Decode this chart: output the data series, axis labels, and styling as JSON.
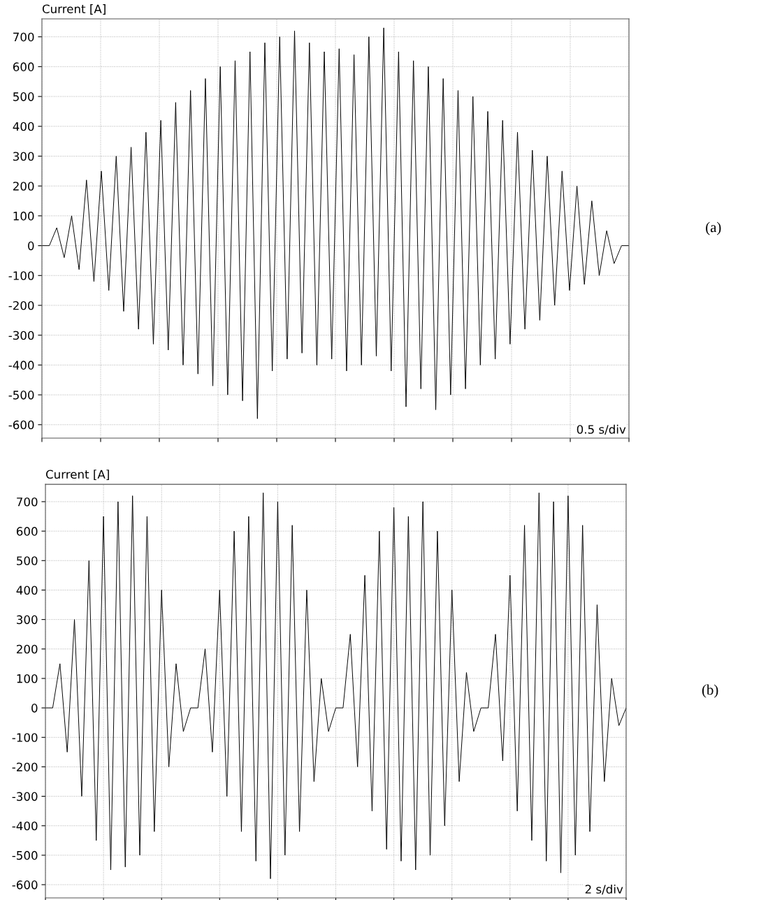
{
  "chart_data": [
    {
      "type": "line",
      "ylabel": "Current [A]",
      "annotations": [
        "0.5 s/div",
        "(a)"
      ],
      "ylim": [
        -645,
        760
      ],
      "yticks": [
        -600,
        -500,
        -400,
        -300,
        -200,
        -100,
        0,
        100,
        200,
        300,
        400,
        500,
        600,
        700
      ],
      "grid": true,
      "tick_labels": "y",
      "categories": [
        null,
        null,
        null,
        null,
        null,
        null,
        null,
        null,
        null,
        null,
        null,
        null,
        null,
        null,
        null,
        null,
        null,
        null,
        null,
        null,
        null,
        null,
        null,
        null,
        null,
        null,
        null,
        null,
        null,
        null,
        null,
        null,
        null,
        null,
        null,
        null,
        null,
        null,
        null,
        null,
        null,
        null,
        null,
        null,
        null,
        null,
        null,
        null,
        null,
        null,
        null,
        null,
        null,
        null,
        null,
        null,
        null,
        null,
        null,
        null,
        null,
        null,
        null,
        null,
        null,
        null,
        null,
        null,
        null,
        null,
        null,
        null,
        null,
        null,
        null,
        null,
        null,
        null,
        null,
        null
      ],
      "series": [
        {
          "color": "#000000",
          "values": [
            0,
            0,
            60,
            -40,
            100,
            -80,
            220,
            -120,
            250,
            -150,
            300,
            -220,
            330,
            -280,
            380,
            -330,
            420,
            -350,
            480,
            -400,
            520,
            -430,
            560,
            -470,
            600,
            -500,
            620,
            -520,
            650,
            -580,
            680,
            -420,
            700,
            -380,
            720,
            -360,
            680,
            -400,
            650,
            -380,
            660,
            -420,
            640,
            -400,
            700,
            -370,
            730,
            -420,
            650,
            -540,
            620,
            -480,
            600,
            -550,
            560,
            -500,
            520,
            -480,
            500,
            -400,
            450,
            -380,
            420,
            -330,
            380,
            -280,
            320,
            -250,
            300,
            -200,
            250,
            -150,
            200,
            -130,
            150,
            -100,
            50,
            -60,
            0,
            0
          ]
        }
      ]
    },
    {
      "type": "line",
      "ylabel": "Current [A]",
      "annotations": [
        "2 s/div",
        "(b)"
      ],
      "ylim": [
        -645,
        759
      ],
      "yticks": [
        -600,
        -500,
        -400,
        -300,
        -200,
        -100,
        0,
        100,
        200,
        300,
        400,
        500,
        600,
        700
      ],
      "grid": true,
      "tick_labels": "y",
      "categories": [
        null,
        null,
        null,
        null,
        null,
        null,
        null,
        null,
        null,
        null,
        null,
        null,
        null,
        null,
        null,
        null,
        null,
        null,
        null,
        null,
        null,
        null,
        null,
        null,
        null,
        null,
        null,
        null,
        null,
        null,
        null,
        null,
        null,
        null,
        null,
        null,
        null,
        null,
        null,
        null,
        null,
        null,
        null,
        null,
        null,
        null,
        null,
        null,
        null,
        null,
        null,
        null,
        null,
        null,
        null,
        null,
        null,
        null,
        null,
        null,
        null,
        null,
        null,
        null,
        null,
        null,
        null,
        null,
        null,
        null,
        null,
        null,
        null,
        null,
        null,
        null,
        null,
        null,
        null,
        null,
        null
      ],
      "series": [
        {
          "color": "#000000",
          "values": [
            0,
            0,
            150,
            -150,
            300,
            -300,
            500,
            -450,
            650,
            -550,
            700,
            -540,
            720,
            -500,
            650,
            -420,
            400,
            -200,
            150,
            -80,
            0,
            0,
            200,
            -150,
            400,
            -300,
            600,
            -420,
            650,
            -520,
            730,
            -580,
            700,
            -500,
            620,
            -420,
            400,
            -250,
            100,
            -80,
            0,
            0,
            250,
            -200,
            450,
            -350,
            600,
            -480,
            680,
            -520,
            650,
            -550,
            700,
            -500,
            600,
            -400,
            400,
            -250,
            120,
            -80,
            0,
            0,
            250,
            -180,
            450,
            -350,
            620,
            -450,
            730,
            -520,
            700,
            -560,
            720,
            -500,
            620,
            -420,
            350,
            -250,
            100,
            -60,
            0
          ]
        }
      ]
    }
  ]
}
